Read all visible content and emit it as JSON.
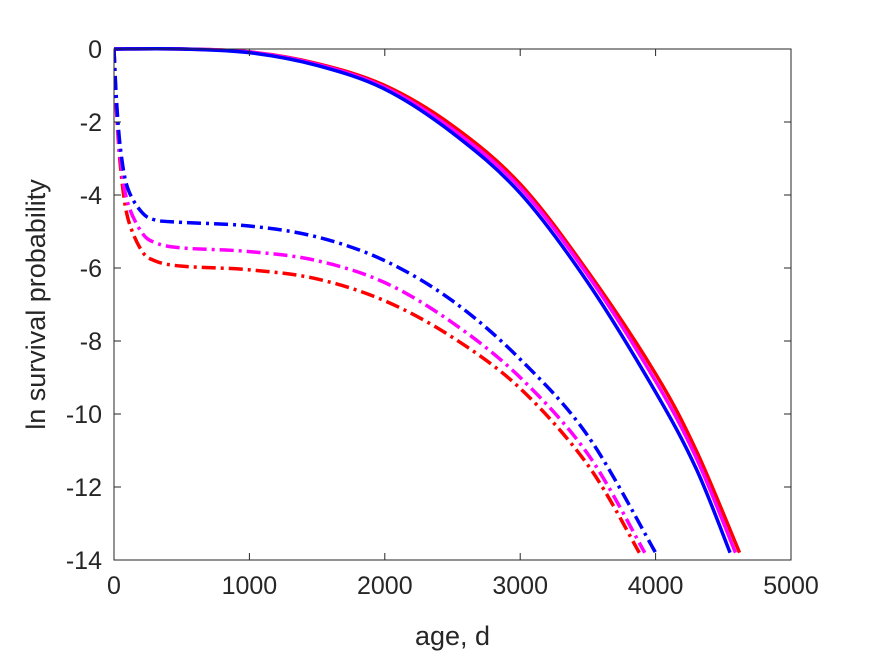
{
  "chart_data": {
    "type": "line",
    "title": "",
    "xlabel": "age, d",
    "ylabel": "ln survival probability",
    "xlim": [
      0,
      5000
    ],
    "ylim": [
      -14,
      0
    ],
    "xticks": [
      0,
      1000,
      2000,
      3000,
      4000,
      5000
    ],
    "yticks": [
      0,
      -2,
      -4,
      -6,
      -8,
      -10,
      -12,
      -14
    ],
    "grid": false,
    "legend": "none",
    "series": [
      {
        "color": "#ff0000",
        "style": "solid",
        "points": [
          [
            0,
            0
          ],
          [
            500,
            0
          ],
          [
            1000,
            -0.08
          ],
          [
            1500,
            -0.4
          ],
          [
            2000,
            -1.0
          ],
          [
            2500,
            -2.1
          ],
          [
            3000,
            -3.7
          ],
          [
            3500,
            -6.1
          ],
          [
            4000,
            -8.9
          ],
          [
            4300,
            -11.0
          ],
          [
            4620,
            -13.8
          ]
        ]
      },
      {
        "color": "#ff00ff",
        "style": "solid",
        "points": [
          [
            0,
            0
          ],
          [
            500,
            0
          ],
          [
            1000,
            -0.08
          ],
          [
            1500,
            -0.42
          ],
          [
            2000,
            -1.05
          ],
          [
            2500,
            -2.2
          ],
          [
            3000,
            -3.8
          ],
          [
            3500,
            -6.2
          ],
          [
            4000,
            -9.1
          ],
          [
            4300,
            -11.2
          ],
          [
            4590,
            -13.8
          ]
        ]
      },
      {
        "color": "#0000ff",
        "style": "solid",
        "points": [
          [
            0,
            0
          ],
          [
            500,
            0
          ],
          [
            1000,
            -0.1
          ],
          [
            1500,
            -0.45
          ],
          [
            2000,
            -1.1
          ],
          [
            2500,
            -2.3
          ],
          [
            3000,
            -3.95
          ],
          [
            3500,
            -6.4
          ],
          [
            4000,
            -9.4
          ],
          [
            4300,
            -11.5
          ],
          [
            4550,
            -13.8
          ]
        ]
      },
      {
        "color": "#ff0000",
        "style": "dashdot",
        "points": [
          [
            0,
            0
          ],
          [
            20,
            -1.8
          ],
          [
            50,
            -3.3
          ],
          [
            100,
            -4.6
          ],
          [
            200,
            -5.5
          ],
          [
            300,
            -5.8
          ],
          [
            500,
            -5.95
          ],
          [
            1000,
            -6.05
          ],
          [
            1500,
            -6.3
          ],
          [
            2000,
            -6.9
          ],
          [
            2500,
            -7.9
          ],
          [
            3000,
            -9.3
          ],
          [
            3500,
            -11.4
          ],
          [
            3880,
            -13.8
          ]
        ]
      },
      {
        "color": "#ff00ff",
        "style": "dashdot",
        "points": [
          [
            0,
            0
          ],
          [
            20,
            -1.7
          ],
          [
            50,
            -3.1
          ],
          [
            100,
            -4.2
          ],
          [
            200,
            -5.0
          ],
          [
            300,
            -5.3
          ],
          [
            500,
            -5.45
          ],
          [
            1000,
            -5.55
          ],
          [
            1500,
            -5.8
          ],
          [
            2000,
            -6.4
          ],
          [
            2500,
            -7.5
          ],
          [
            3000,
            -9.0
          ],
          [
            3500,
            -11.1
          ],
          [
            3920,
            -13.8
          ]
        ]
      },
      {
        "color": "#0000ff",
        "style": "dashdot",
        "points": [
          [
            0,
            0
          ],
          [
            20,
            -1.5
          ],
          [
            50,
            -2.8
          ],
          [
            100,
            -3.8
          ],
          [
            200,
            -4.45
          ],
          [
            300,
            -4.68
          ],
          [
            500,
            -4.75
          ],
          [
            1000,
            -4.85
          ],
          [
            1500,
            -5.15
          ],
          [
            2000,
            -5.8
          ],
          [
            2500,
            -6.9
          ],
          [
            3000,
            -8.5
          ],
          [
            3500,
            -10.6
          ],
          [
            4000,
            -13.8
          ]
        ]
      }
    ]
  }
}
